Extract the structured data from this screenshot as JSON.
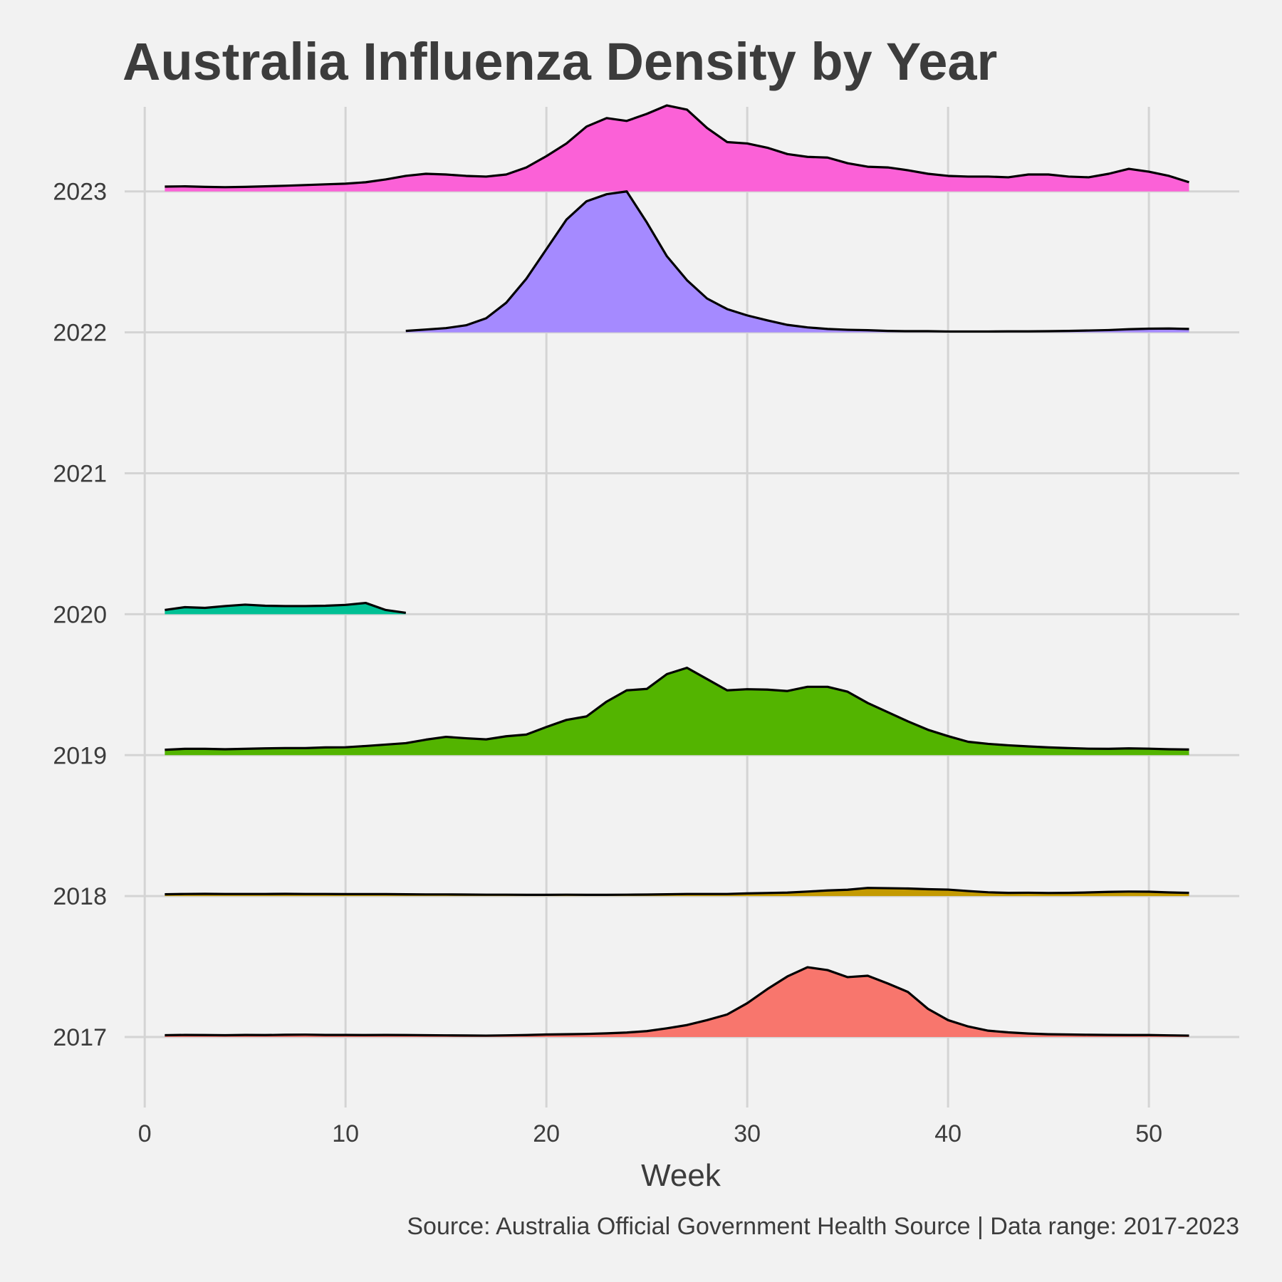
{
  "chart_data": {
    "type": "area",
    "subtype": "ridgeline",
    "title": "Australia Influenza Density by Year",
    "xlabel": "Week",
    "ylabel": "",
    "caption": "Source: Australia Official Government Health Source | Data range: 2017-2023",
    "xlim": [
      -1,
      54.5
    ],
    "ylim": [
      2016.5,
      2023.6
    ],
    "x_ticks": [
      0,
      10,
      20,
      30,
      40,
      50
    ],
    "categories": [
      "2017",
      "2018",
      "2019",
      "2020",
      "2021",
      "2022",
      "2023"
    ],
    "grid": true,
    "legend": "none",
    "series": [
      {
        "name": "2017",
        "baseline": 2017,
        "color": "#f8766d",
        "x": [
          1,
          2,
          3,
          4,
          5,
          6,
          7,
          8,
          9,
          10,
          11,
          12,
          13,
          14,
          15,
          16,
          17,
          18,
          19,
          20,
          21,
          22,
          23,
          24,
          25,
          26,
          27,
          28,
          29,
          30,
          31,
          32,
          33,
          34,
          35,
          36,
          37,
          38,
          39,
          40,
          41,
          42,
          43,
          44,
          45,
          46,
          47,
          48,
          49,
          50,
          51,
          52
        ],
        "y": [
          0.013,
          0.015,
          0.014,
          0.013,
          0.015,
          0.014,
          0.016,
          0.017,
          0.015,
          0.015,
          0.014,
          0.015,
          0.014,
          0.013,
          0.012,
          0.011,
          0.01,
          0.012,
          0.014,
          0.018,
          0.02,
          0.022,
          0.026,
          0.032,
          0.042,
          0.062,
          0.085,
          0.12,
          0.16,
          0.24,
          0.34,
          0.43,
          0.495,
          0.475,
          0.425,
          0.435,
          0.38,
          0.32,
          0.2,
          0.12,
          0.075,
          0.045,
          0.033,
          0.025,
          0.02,
          0.018,
          0.016,
          0.015,
          0.014,
          0.014,
          0.012,
          0.01
        ]
      },
      {
        "name": "2018",
        "baseline": 2018,
        "color": "#c49a00",
        "x": [
          1,
          2,
          3,
          4,
          5,
          6,
          7,
          8,
          9,
          10,
          11,
          12,
          13,
          14,
          15,
          16,
          17,
          18,
          19,
          20,
          21,
          22,
          23,
          24,
          25,
          26,
          27,
          28,
          29,
          30,
          31,
          32,
          33,
          34,
          35,
          36,
          37,
          38,
          39,
          40,
          41,
          42,
          43,
          44,
          45,
          46,
          47,
          48,
          49,
          50,
          51,
          52
        ],
        "y": [
          0.013,
          0.015,
          0.016,
          0.015,
          0.015,
          0.015,
          0.016,
          0.015,
          0.015,
          0.014,
          0.014,
          0.014,
          0.013,
          0.012,
          0.012,
          0.011,
          0.01,
          0.01,
          0.009,
          0.009,
          0.01,
          0.009,
          0.009,
          0.01,
          0.011,
          0.013,
          0.015,
          0.015,
          0.015,
          0.019,
          0.022,
          0.025,
          0.032,
          0.04,
          0.045,
          0.058,
          0.056,
          0.054,
          0.049,
          0.046,
          0.036,
          0.027,
          0.023,
          0.024,
          0.022,
          0.023,
          0.026,
          0.03,
          0.032,
          0.031,
          0.026,
          0.023
        ]
      },
      {
        "name": "2019",
        "baseline": 2019,
        "color": "#53b400",
        "x": [
          1,
          2,
          3,
          4,
          5,
          6,
          7,
          8,
          9,
          10,
          11,
          12,
          13,
          14,
          15,
          16,
          17,
          18,
          19,
          20,
          21,
          22,
          23,
          24,
          25,
          26,
          27,
          28,
          29,
          30,
          31,
          32,
          33,
          34,
          35,
          36,
          37,
          38,
          39,
          40,
          41,
          42,
          43,
          44,
          45,
          46,
          47,
          48,
          49,
          50,
          51,
          52
        ],
        "y": [
          0.038,
          0.045,
          0.045,
          0.042,
          0.045,
          0.048,
          0.05,
          0.05,
          0.055,
          0.056,
          0.065,
          0.075,
          0.085,
          0.11,
          0.13,
          0.12,
          0.112,
          0.134,
          0.146,
          0.2,
          0.25,
          0.275,
          0.38,
          0.46,
          0.47,
          0.575,
          0.62,
          0.54,
          0.46,
          0.468,
          0.465,
          0.455,
          0.485,
          0.485,
          0.45,
          0.37,
          0.305,
          0.24,
          0.18,
          0.135,
          0.095,
          0.08,
          0.07,
          0.062,
          0.055,
          0.05,
          0.046,
          0.045,
          0.048,
          0.046,
          0.042,
          0.04
        ]
      },
      {
        "name": "2020",
        "baseline": 2020,
        "color": "#00c094",
        "x": [
          1,
          2,
          3,
          4,
          5,
          6,
          7,
          8,
          9,
          10,
          11,
          12,
          13
        ],
        "y": [
          0.03,
          0.05,
          0.045,
          0.058,
          0.068,
          0.06,
          0.058,
          0.058,
          0.06,
          0.066,
          0.08,
          0.03,
          0.01
        ]
      },
      {
        "name": "2022",
        "baseline": 2022,
        "color": "#a58aff",
        "x": [
          13,
          14,
          15,
          16,
          17,
          18,
          19,
          20,
          21,
          22,
          23,
          24,
          25,
          26,
          27,
          28,
          29,
          30,
          31,
          32,
          33,
          34,
          35,
          36,
          37,
          38,
          39,
          40,
          41,
          42,
          43,
          44,
          45,
          46,
          47,
          48,
          49,
          50,
          51,
          52
        ],
        "y": [
          0.01,
          0.02,
          0.03,
          0.05,
          0.1,
          0.21,
          0.38,
          0.59,
          0.8,
          0.93,
          0.98,
          1.0,
          0.78,
          0.54,
          0.37,
          0.24,
          0.165,
          0.12,
          0.085,
          0.053,
          0.035,
          0.024,
          0.018,
          0.015,
          0.01,
          0.008,
          0.008,
          0.006,
          0.006,
          0.006,
          0.007,
          0.007,
          0.008,
          0.01,
          0.013,
          0.016,
          0.022,
          0.026,
          0.027,
          0.024
        ]
      },
      {
        "name": "2023",
        "baseline": 2023,
        "color": "#fb61d7",
        "x": [
          1,
          2,
          3,
          4,
          5,
          6,
          7,
          8,
          9,
          10,
          11,
          12,
          13,
          14,
          15,
          16,
          17,
          18,
          19,
          20,
          21,
          22,
          23,
          24,
          25,
          26,
          27,
          28,
          29,
          30,
          31,
          32,
          33,
          34,
          35,
          36,
          37,
          38,
          39,
          40,
          41,
          42,
          43,
          44,
          45,
          46,
          47,
          48,
          49,
          50,
          51,
          52
        ],
        "y": [
          0.034,
          0.036,
          0.032,
          0.03,
          0.032,
          0.036,
          0.04,
          0.045,
          0.05,
          0.055,
          0.065,
          0.085,
          0.11,
          0.125,
          0.12,
          0.11,
          0.105,
          0.12,
          0.17,
          0.25,
          0.34,
          0.46,
          0.52,
          0.5,
          0.55,
          0.61,
          0.58,
          0.45,
          0.35,
          0.34,
          0.31,
          0.265,
          0.245,
          0.24,
          0.2,
          0.175,
          0.17,
          0.15,
          0.125,
          0.11,
          0.105,
          0.105,
          0.1,
          0.12,
          0.12,
          0.105,
          0.1,
          0.125,
          0.16,
          0.14,
          0.11,
          0.065
        ]
      }
    ]
  }
}
